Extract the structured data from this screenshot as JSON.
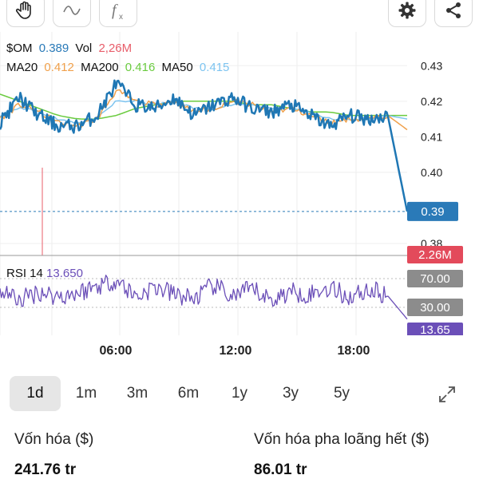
{
  "toolbar": {
    "icons": [
      "hand-icon",
      "curve-icon",
      "function-icon",
      "gear-icon",
      "share-icon"
    ],
    "function_glyph": "f",
    "function_sub": "x"
  },
  "legend": {
    "symbol": "$OM",
    "price": "0.389",
    "vol_label": "Vol",
    "vol_value": "2,26M",
    "ma20_label": "MA20",
    "ma20_value": "0.412",
    "ma200_label": "MA200",
    "ma200_value": "0.416",
    "ma50_label": "MA50",
    "ma50_value": "0.415"
  },
  "rsi": {
    "label": "RSI 14",
    "value": "13.650"
  },
  "price_axis": {
    "ticks": [
      "0.43",
      "0.42",
      "0.41",
      "0.40",
      "0.38"
    ],
    "tag_price": "0.39",
    "tag_volume": "2.26M"
  },
  "rsi_axis": {
    "tag_70": "70.00",
    "tag_30": "30.00",
    "tag_current": "13.65"
  },
  "time_axis": {
    "labels": [
      "06:00",
      "12:00",
      "18:00"
    ]
  },
  "colors": {
    "price_line": "#1f77b4",
    "ma20": "#f0a04b",
    "ma200": "#6acb3f",
    "ma50": "#7dc4f0",
    "volume": "#e85d6a",
    "rsi": "#6b4fb8",
    "price_tag": "#2a7ab8",
    "volume_tag": "#e34a5b",
    "grey_tag": "#8c8c8c"
  },
  "tabs": [
    "1d",
    "1m",
    "3m",
    "6m",
    "1y",
    "3y",
    "5y"
  ],
  "active_tab": "1d",
  "stats": {
    "market_cap_label": "Vốn hóa ($)",
    "market_cap_value": "241.76 tr",
    "fdv_label": "Vốn hóa pha loãng hết ($)",
    "fdv_value": "86.01 tr"
  },
  "chart_data": {
    "type": "line",
    "x": [
      "01:00",
      "02:00",
      "03:00",
      "04:00",
      "05:00",
      "06:00",
      "07:00",
      "08:00",
      "09:00",
      "10:00",
      "11:00",
      "12:00",
      "13:00",
      "14:00",
      "15:00",
      "16:00",
      "17:00",
      "18:00",
      "19:00",
      "20:00",
      "21:00",
      "21:15"
    ],
    "series": [
      {
        "name": "$OM",
        "values": [
          0.414,
          0.421,
          0.416,
          0.413,
          0.413,
          0.416,
          0.425,
          0.419,
          0.418,
          0.421,
          0.416,
          0.419,
          0.421,
          0.418,
          0.417,
          0.419,
          0.416,
          0.413,
          0.416,
          0.415,
          0.416,
          0.389
        ]
      },
      {
        "name": "MA20",
        "values": [
          0.415,
          0.419,
          0.417,
          0.414,
          0.413,
          0.415,
          0.423,
          0.42,
          0.419,
          0.42,
          0.417,
          0.418,
          0.42,
          0.419,
          0.417,
          0.418,
          0.416,
          0.414,
          0.415,
          0.415,
          0.416,
          0.412
        ]
      },
      {
        "name": "MA50",
        "values": [
          0.416,
          0.418,
          0.417,
          0.415,
          0.414,
          0.415,
          0.42,
          0.42,
          0.419,
          0.42,
          0.418,
          0.418,
          0.419,
          0.419,
          0.418,
          0.418,
          0.417,
          0.415,
          0.415,
          0.415,
          0.416,
          0.415
        ]
      },
      {
        "name": "MA200",
        "values": [
          0.422,
          0.42,
          0.418,
          0.416,
          0.415,
          0.415,
          0.416,
          0.418,
          0.419,
          0.42,
          0.42,
          0.42,
          0.42,
          0.419,
          0.419,
          0.418,
          0.417,
          0.417,
          0.416,
          0.416,
          0.416,
          0.416
        ]
      },
      {
        "name": "RSI 14",
        "values": [
          55,
          40,
          52,
          45,
          50,
          60,
          68,
          45,
          58,
          48,
          42,
          60,
          45,
          55,
          40,
          52,
          48,
          58,
          44,
          55,
          46,
          13.65
        ]
      }
    ],
    "ylim": [
      0.38,
      0.435
    ],
    "rsi_levels": [
      70,
      30
    ]
  }
}
